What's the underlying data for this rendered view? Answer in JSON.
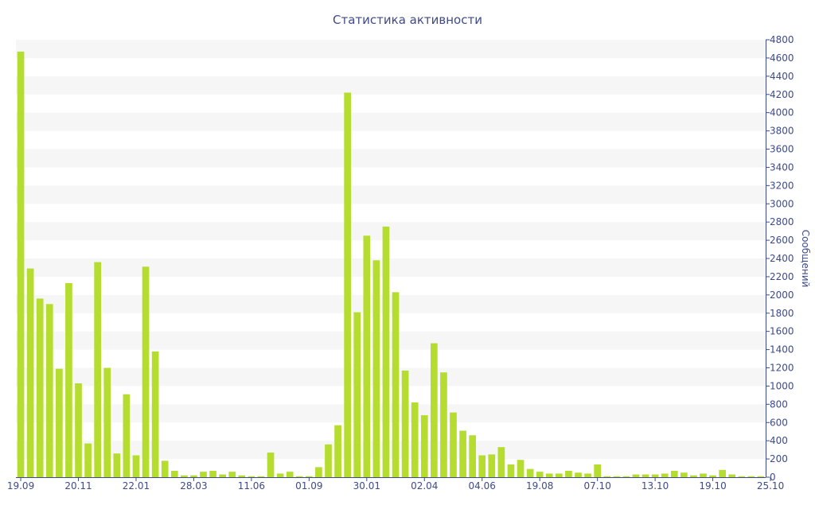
{
  "chart_data": {
    "type": "bar",
    "title": "Статистика активности",
    "ylabel": "Сообщений",
    "xlabel": "",
    "ylim": [
      0,
      4800
    ],
    "y_ticks": [
      0,
      200,
      400,
      600,
      800,
      1000,
      1200,
      1400,
      1600,
      1800,
      2000,
      2200,
      2400,
      2600,
      2800,
      3000,
      3200,
      3400,
      3600,
      3800,
      4000,
      4200,
      4400,
      4600,
      4800
    ],
    "x_tick_labels": [
      {
        "index": 0,
        "label": "19.09"
      },
      {
        "index": 6,
        "label": "20.11"
      },
      {
        "index": 12,
        "label": "22.01"
      },
      {
        "index": 18,
        "label": "28.03"
      },
      {
        "index": 24,
        "label": "11.06"
      },
      {
        "index": 30,
        "label": "01.09"
      },
      {
        "index": 36,
        "label": "30.01"
      },
      {
        "index": 42,
        "label": "02.04"
      },
      {
        "index": 48,
        "label": "04.06"
      },
      {
        "index": 54,
        "label": "19.08"
      },
      {
        "index": 60,
        "label": "07.10"
      },
      {
        "index": 66,
        "label": "13.10"
      },
      {
        "index": 72,
        "label": "19.10"
      },
      {
        "index": 78,
        "label": "25.10"
      }
    ],
    "grid": "horizontal bands",
    "y_axis_side": "right",
    "bar_color": "#b5dd2f",
    "band_color": "#f6f6f6",
    "axis_color": "#3d4a8c",
    "values": [
      4670,
      2290,
      1960,
      1900,
      1190,
      2130,
      1030,
      370,
      2360,
      1200,
      260,
      910,
      240,
      2310,
      1380,
      180,
      70,
      20,
      20,
      60,
      70,
      30,
      60,
      20,
      10,
      10,
      270,
      40,
      60,
      10,
      10,
      110,
      360,
      570,
      4220,
      1810,
      2650,
      2380,
      2750,
      2030,
      1170,
      820,
      680,
      1470,
      1150,
      710,
      510,
      460,
      240,
      250,
      330,
      140,
      190,
      90,
      60,
      40,
      40,
      70,
      50,
      40,
      140,
      10,
      10,
      10,
      30,
      30,
      30,
      40,
      70,
      50,
      20,
      40,
      20,
      80,
      30,
      10,
      10,
      10
    ]
  }
}
